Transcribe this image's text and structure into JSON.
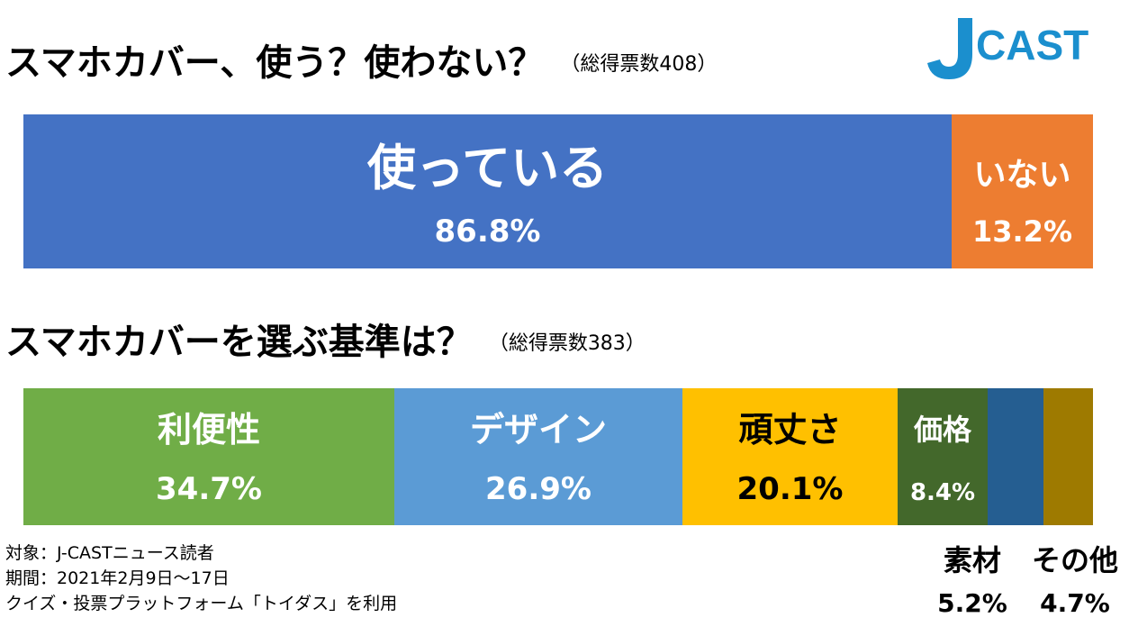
{
  "logo": {
    "text": "CAST",
    "letter": "J",
    "color": "#1b8fce"
  },
  "chart_data": [
    {
      "type": "bar",
      "orientation": "horizontal-stacked-100",
      "title": "スマホカバー、使う？使わない？",
      "subtitle": "（総得票数408）",
      "categories": [
        "使っている",
        "いない"
      ],
      "values": [
        86.8,
        13.2
      ],
      "value_labels": [
        "86.8%",
        "13.2%"
      ],
      "colors": [
        "#4472c4",
        "#ed7d31"
      ],
      "label_colors": [
        "#ffffff",
        "#ffffff"
      ]
    },
    {
      "type": "bar",
      "orientation": "horizontal-stacked-100",
      "title": "スマホカバーを選ぶ基準は？",
      "subtitle": "（総得票数383）",
      "categories": [
        "利便性",
        "デザイン",
        "頑丈さ",
        "価格",
        "素材",
        "その他"
      ],
      "values": [
        34.7,
        26.9,
        20.1,
        8.4,
        5.2,
        4.7
      ],
      "value_labels": [
        "34.7%",
        "26.9%",
        "20.1%",
        "8.4%",
        "5.2%",
        "4.7%"
      ],
      "colors": [
        "#70ad47",
        "#5b9bd5",
        "#ffc000",
        "#43682b",
        "#255e91",
        "#9e7a00"
      ],
      "label_colors": [
        "#ffffff",
        "#ffffff",
        "#000000",
        "#ffffff",
        "#ffffff",
        "#ffffff"
      ],
      "inside_label_count": 4
    }
  ],
  "footnotes": [
    "対象：J-CASTニュース読者",
    "期間：2021年2月9日～17日",
    "クイズ・投票プラットフォーム「トイダス」を利用"
  ]
}
